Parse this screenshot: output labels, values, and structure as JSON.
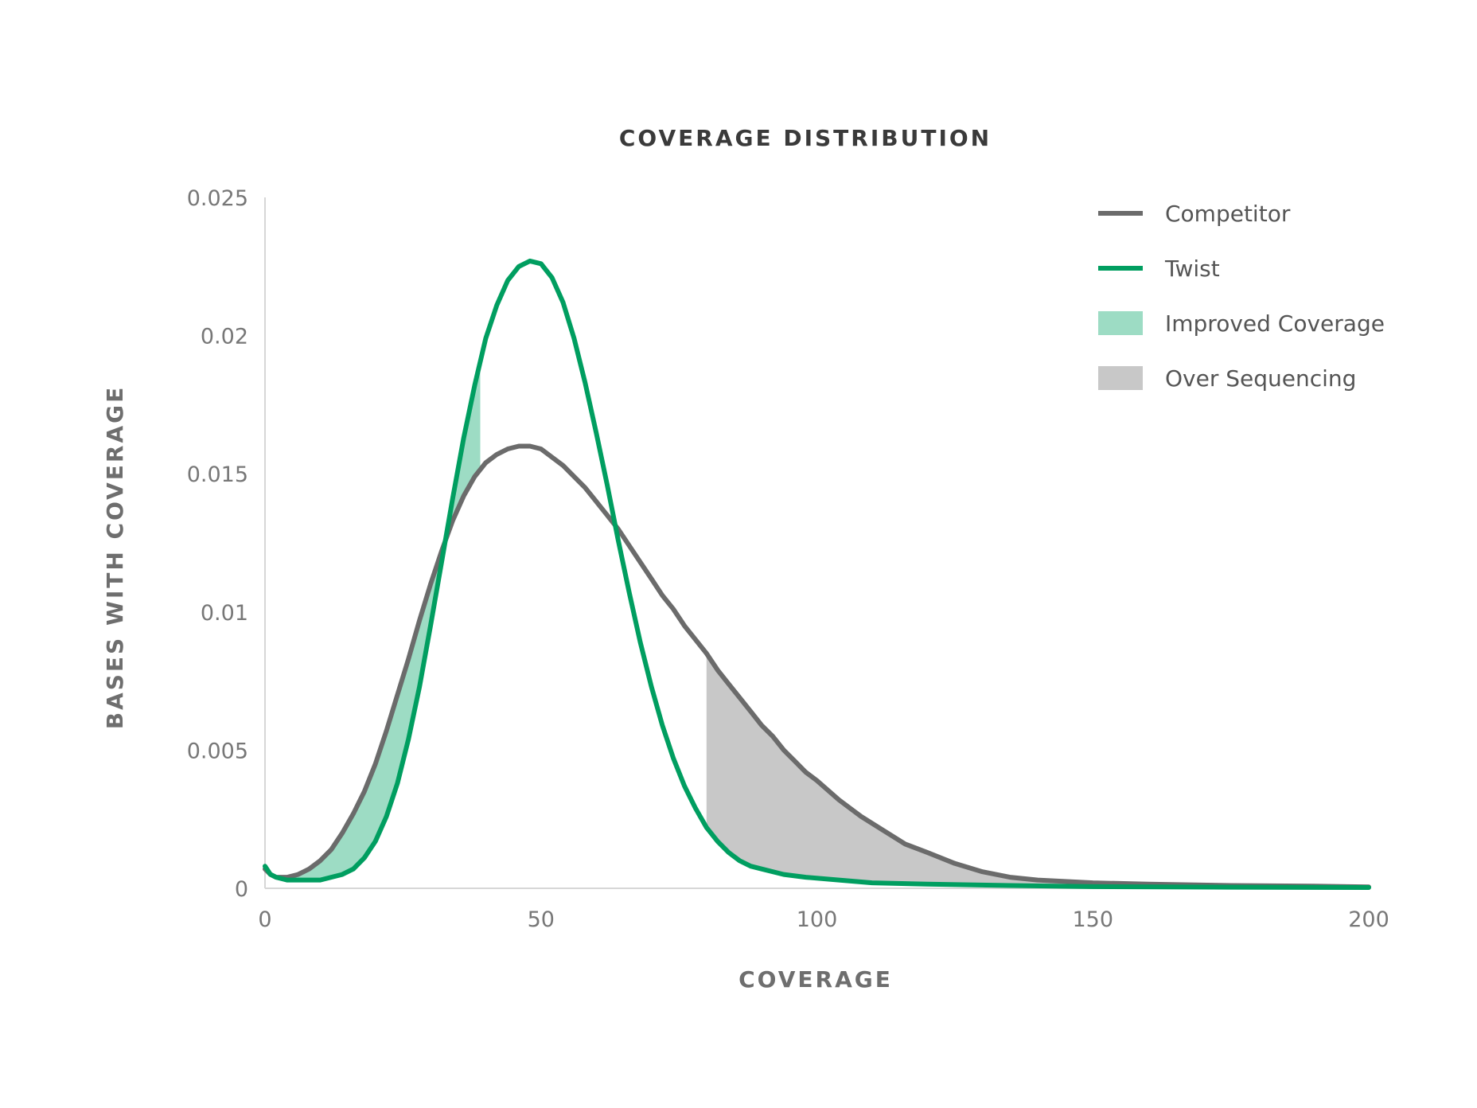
{
  "chart_data": {
    "type": "line",
    "title": "COVERAGE DISTRIBUTION",
    "xlabel": "COVERAGE",
    "ylabel": "BASES WITH COVERAGE",
    "xlim": [
      0,
      200
    ],
    "ylim": [
      0,
      0.025
    ],
    "x_ticks": [
      "0",
      "50",
      "100",
      "150",
      "200"
    ],
    "y_ticks": [
      "0",
      "0.005",
      "0.01",
      "0.015",
      "0.02",
      "0.025"
    ],
    "grid": false,
    "legend_position": "top-right",
    "legend": [
      {
        "label": "Competitor",
        "kind": "line",
        "color": "#6b6b6b"
      },
      {
        "label": "Twist",
        "kind": "line",
        "color": "#009e60"
      },
      {
        "label": "Improved Coverage",
        "kind": "area",
        "color": "#9ddcc4"
      },
      {
        "label": "Over Sequencing",
        "kind": "area",
        "color": "#c8c8c8"
      }
    ],
    "series": [
      {
        "name": "Competitor",
        "color": "#6b6b6b",
        "points": [
          [
            0,
            0.0007
          ],
          [
            1,
            0.0005
          ],
          [
            2,
            0.0004
          ],
          [
            4,
            0.0004
          ],
          [
            6,
            0.0005
          ],
          [
            8,
            0.0007
          ],
          [
            10,
            0.001
          ],
          [
            12,
            0.0014
          ],
          [
            14,
            0.002
          ],
          [
            16,
            0.0027
          ],
          [
            18,
            0.0035
          ],
          [
            20,
            0.0045
          ],
          [
            22,
            0.0057
          ],
          [
            24,
            0.007
          ],
          [
            26,
            0.0083
          ],
          [
            28,
            0.0097
          ],
          [
            30,
            0.011
          ],
          [
            32,
            0.0122
          ],
          [
            34,
            0.0133
          ],
          [
            36,
            0.0142
          ],
          [
            38,
            0.0149
          ],
          [
            40,
            0.0154
          ],
          [
            42,
            0.0157
          ],
          [
            44,
            0.0159
          ],
          [
            46,
            0.016
          ],
          [
            48,
            0.016
          ],
          [
            50,
            0.0159
          ],
          [
            52,
            0.0156
          ],
          [
            54,
            0.0153
          ],
          [
            56,
            0.0149
          ],
          [
            58,
            0.0145
          ],
          [
            60,
            0.014
          ],
          [
            62,
            0.0135
          ],
          [
            64,
            0.013
          ],
          [
            66,
            0.0124
          ],
          [
            68,
            0.0118
          ],
          [
            70,
            0.0112
          ],
          [
            72,
            0.0106
          ],
          [
            74,
            0.0101
          ],
          [
            76,
            0.0095
          ],
          [
            78,
            0.009
          ],
          [
            80,
            0.0085
          ],
          [
            82,
            0.0079
          ],
          [
            84,
            0.0074
          ],
          [
            86,
            0.0069
          ],
          [
            88,
            0.0064
          ],
          [
            90,
            0.0059
          ],
          [
            92,
            0.0055
          ],
          [
            94,
            0.005
          ],
          [
            96,
            0.0046
          ],
          [
            98,
            0.0042
          ],
          [
            100,
            0.0039
          ],
          [
            104,
            0.0032
          ],
          [
            108,
            0.0026
          ],
          [
            112,
            0.0021
          ],
          [
            116,
            0.0016
          ],
          [
            120,
            0.0013
          ],
          [
            125,
            0.0009
          ],
          [
            130,
            0.0006
          ],
          [
            135,
            0.0004
          ],
          [
            140,
            0.0003
          ],
          [
            150,
            0.0002
          ],
          [
            160,
            0.00015
          ],
          [
            175,
            0.0001
          ],
          [
            190,
            8e-05
          ],
          [
            200,
            5e-05
          ]
        ]
      },
      {
        "name": "Twist",
        "color": "#009e60",
        "points": [
          [
            0,
            0.0008
          ],
          [
            1,
            0.0005
          ],
          [
            2,
            0.0004
          ],
          [
            4,
            0.0003
          ],
          [
            6,
            0.0003
          ],
          [
            8,
            0.0003
          ],
          [
            10,
            0.0003
          ],
          [
            12,
            0.0004
          ],
          [
            14,
            0.0005
          ],
          [
            16,
            0.0007
          ],
          [
            18,
            0.0011
          ],
          [
            20,
            0.0017
          ],
          [
            22,
            0.0026
          ],
          [
            24,
            0.0038
          ],
          [
            26,
            0.0054
          ],
          [
            28,
            0.0073
          ],
          [
            30,
            0.0095
          ],
          [
            32,
            0.0118
          ],
          [
            34,
            0.0141
          ],
          [
            36,
            0.0163
          ],
          [
            38,
            0.0182
          ],
          [
            40,
            0.0199
          ],
          [
            42,
            0.0211
          ],
          [
            44,
            0.022
          ],
          [
            46,
            0.0225
          ],
          [
            48,
            0.0227
          ],
          [
            50,
            0.0226
          ],
          [
            52,
            0.0221
          ],
          [
            54,
            0.0212
          ],
          [
            56,
            0.0199
          ],
          [
            58,
            0.0183
          ],
          [
            60,
            0.0165
          ],
          [
            62,
            0.0146
          ],
          [
            64,
            0.0126
          ],
          [
            66,
            0.0107
          ],
          [
            68,
            0.0089
          ],
          [
            70,
            0.0073
          ],
          [
            72,
            0.0059
          ],
          [
            74,
            0.0047
          ],
          [
            76,
            0.0037
          ],
          [
            78,
            0.0029
          ],
          [
            80,
            0.0022
          ],
          [
            82,
            0.0017
          ],
          [
            84,
            0.0013
          ],
          [
            86,
            0.001
          ],
          [
            88,
            0.0008
          ],
          [
            90,
            0.0007
          ],
          [
            94,
            0.0005
          ],
          [
            98,
            0.0004
          ],
          [
            104,
            0.0003
          ],
          [
            110,
            0.0002
          ],
          [
            120,
            0.00015
          ],
          [
            135,
            0.0001
          ],
          [
            150,
            6e-05
          ],
          [
            175,
            4e-05
          ],
          [
            200,
            3e-05
          ]
        ]
      }
    ],
    "areas": [
      {
        "name": "Improved Coverage",
        "color": "#9ddcc4",
        "between": [
          "Competitor",
          "Twist"
        ],
        "x_range": [
          5,
          39
        ]
      },
      {
        "name": "Over Sequencing",
        "color": "#c8c8c8",
        "between": [
          "Competitor",
          "Twist"
        ],
        "x_range": [
          80,
          200
        ]
      }
    ]
  }
}
